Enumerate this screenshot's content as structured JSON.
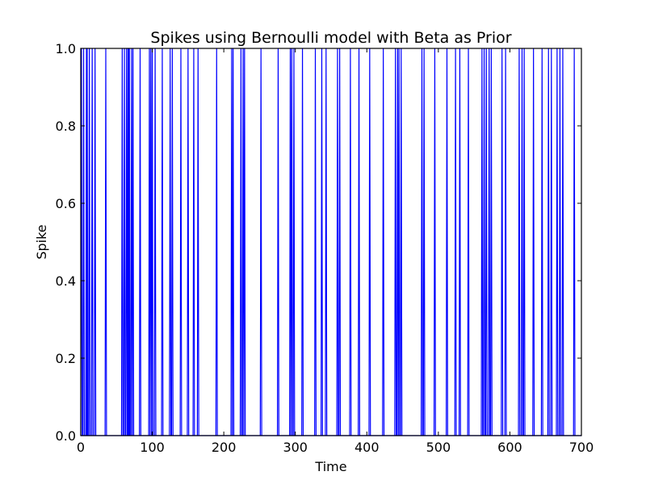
{
  "chart_data": {
    "type": "line",
    "title": "Spikes using Bernoulli model with Beta as Prior",
    "xlabel": "Time",
    "ylabel": "Spike",
    "xlim": [
      0,
      700
    ],
    "ylim": [
      0.0,
      1.0
    ],
    "x_ticks": [
      0,
      100,
      200,
      300,
      400,
      500,
      600,
      700
    ],
    "x_tick_labels": [
      "0",
      "100",
      "200",
      "300",
      "400",
      "500",
      "600",
      "700"
    ],
    "y_ticks": [
      0.0,
      0.2,
      0.4,
      0.6,
      0.8,
      1.0
    ],
    "y_tick_labels": [
      "0.0",
      "0.2",
      "0.4",
      "0.6",
      "0.8",
      "1.0"
    ],
    "grid": false,
    "legend": "none",
    "line_color": "#0000ff",
    "series": [
      {
        "spike_times": [
          1,
          4,
          8,
          9,
          12,
          16,
          20,
          35,
          58,
          61,
          64,
          66,
          67,
          68,
          71,
          73,
          83,
          96,
          98,
          100,
          104,
          114,
          125,
          128,
          140,
          150,
          158,
          164,
          190,
          211,
          213,
          224,
          227,
          229,
          252,
          276,
          293,
          295,
          298,
          310,
          328,
          337,
          343,
          359,
          362,
          377,
          389,
          404,
          423,
          440,
          443,
          445,
          448,
          477,
          480,
          495,
          512,
          524,
          530,
          542,
          561,
          564,
          567,
          571,
          574,
          589,
          594,
          613,
          617,
          620,
          633,
          645,
          654,
          658,
          666,
          670,
          674,
          690
        ]
      }
    ]
  }
}
